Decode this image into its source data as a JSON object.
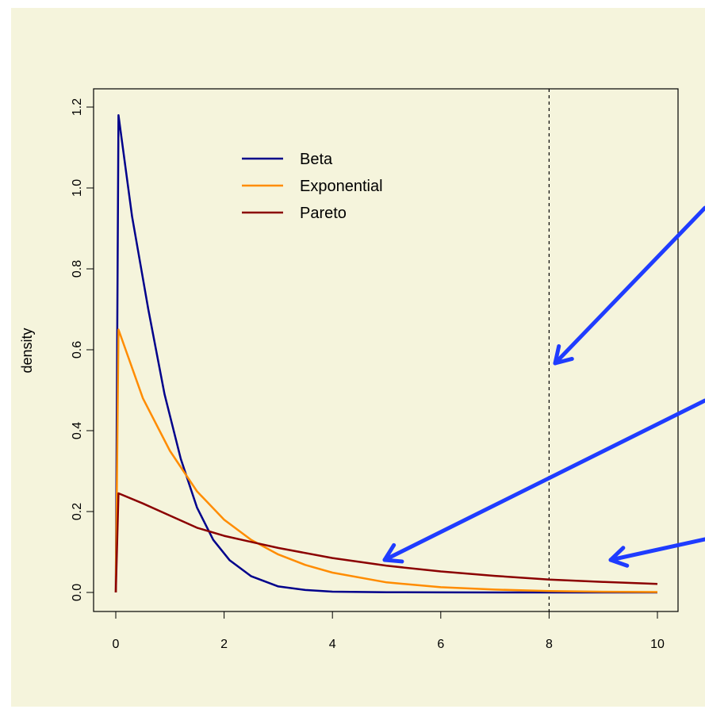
{
  "colors": {
    "background": "#f5f4dc",
    "frame": "#000000",
    "arrow": "#1f3cff"
  },
  "chart_data": {
    "type": "line",
    "xlabel": "",
    "ylabel": "density",
    "xlim": [
      0,
      10
    ],
    "ylim": [
      0,
      1.2
    ],
    "x_ticks": [
      "0",
      "2",
      "4",
      "6",
      "8",
      "10"
    ],
    "y_ticks": [
      "0.0",
      "0.2",
      "0.4",
      "0.6",
      "0.8",
      "1.0",
      "1.2"
    ],
    "legend_position": "top-left",
    "grid": false,
    "vline": {
      "x": 8,
      "style": "dashed"
    },
    "series": [
      {
        "name": "Beta",
        "color": "#00008b",
        "x": [
          0,
          0.05,
          0.3,
          0.6,
          0.9,
          1.2,
          1.5,
          1.8,
          2.1,
          2.5,
          3,
          3.5,
          4,
          5,
          6,
          8,
          10
        ],
        "y": [
          0,
          1.18,
          0.93,
          0.7,
          0.49,
          0.33,
          0.21,
          0.13,
          0.08,
          0.04,
          0.015,
          0.006,
          0.002,
          0.0005,
          0.0001,
          0,
          0
        ]
      },
      {
        "name": "Exponential",
        "color": "#ff8c00",
        "x": [
          0,
          0.05,
          0.5,
          1,
          1.5,
          2,
          2.5,
          3,
          3.5,
          4,
          5,
          6,
          7,
          8,
          9,
          10
        ],
        "y": [
          0,
          0.65,
          0.48,
          0.35,
          0.25,
          0.18,
          0.13,
          0.094,
          0.068,
          0.049,
          0.025,
          0.013,
          0.007,
          0.0035,
          0.0018,
          0.0009
        ]
      },
      {
        "name": "Pareto",
        "color": "#8b0000",
        "x": [
          0,
          0.05,
          0.5,
          1,
          1.5,
          2,
          2.5,
          3,
          4,
          5,
          6,
          7,
          8,
          9,
          10
        ],
        "y": [
          0,
          0.245,
          0.22,
          0.19,
          0.16,
          0.14,
          0.125,
          0.11,
          0.085,
          0.066,
          0.052,
          0.041,
          0.032,
          0.026,
          0.021
        ]
      }
    ]
  }
}
